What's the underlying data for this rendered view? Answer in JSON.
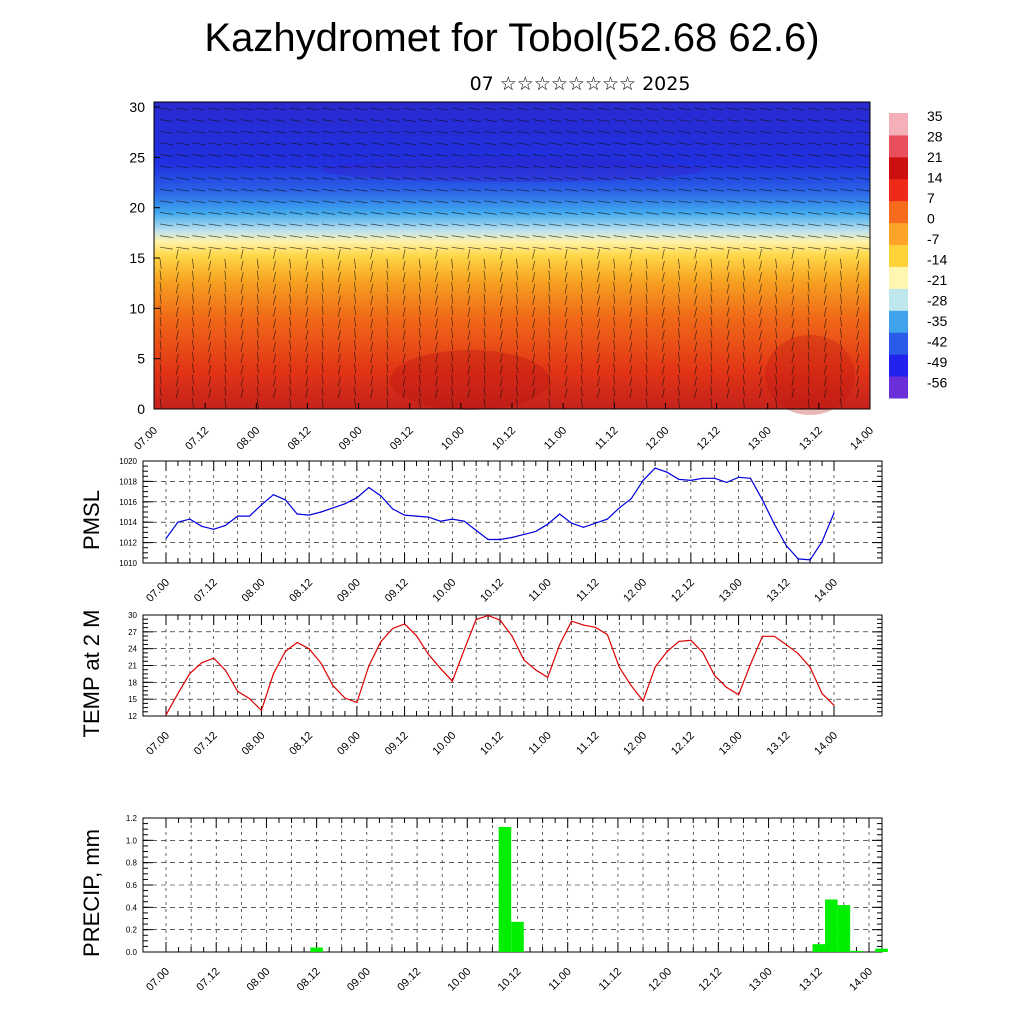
{
  "header": {
    "title": "Kazhydromet for Tobol(52.68 62.6)",
    "subtitle": "07 ☆☆☆☆☆☆☆☆ 2025"
  },
  "chart_data": [
    {
      "type": "heatmap",
      "title": "",
      "ylabel": "",
      "x_ticks": [
        "07.00",
        "07.12",
        "08.00",
        "08.12",
        "09.00",
        "09.12",
        "10.00",
        "10.12",
        "11.00",
        "11.12",
        "12.00",
        "12.12",
        "13.00",
        "13.12",
        "14.00"
      ],
      "y_ticks": [
        "0",
        "5",
        "10",
        "15",
        "20",
        "25",
        "30"
      ],
      "ylim": [
        0,
        30.5
      ],
      "colorbar": {
        "labels": [
          "35",
          "28",
          "21",
          "14",
          "7",
          "0",
          "-7",
          "-14",
          "-21",
          "-28",
          "-35",
          "-42",
          "-49",
          "-56"
        ],
        "colors": [
          "#6a2fd8",
          "#2222ee",
          "#2a5be8",
          "#3fa3ee",
          "#bfe8ee",
          "#fff7b0",
          "#ffd23a",
          "#ffa228",
          "#f56a1c",
          "#ee2a18",
          "#cc1010",
          "#e84e5c",
          "#f4b0b8"
        ]
      },
      "overlay": "wind barbs"
    },
    {
      "type": "line",
      "ylabel": "PMSL",
      "color": "#0000dd",
      "ylim": [
        1010,
        1020
      ],
      "y_ticks": [
        "1010",
        "1012",
        "1014",
        "1016",
        "1018",
        "1020"
      ],
      "x_ticks": [
        "07.00",
        "07.12",
        "08.00",
        "08.12",
        "09.00",
        "09.12",
        "10.00",
        "10.12",
        "11.00",
        "11.12",
        "12.00",
        "12.12",
        "13.00",
        "13.12",
        "14.00"
      ],
      "x_hours": [
        0,
        3,
        6,
        9,
        12,
        15,
        18,
        21,
        24,
        27,
        30,
        33,
        36,
        39,
        42,
        45,
        48,
        51,
        54,
        57,
        60,
        63,
        66,
        69,
        72,
        75,
        78,
        81,
        84,
        87,
        90,
        93,
        96,
        99,
        102,
        105,
        108,
        111,
        114,
        117,
        120,
        123,
        126,
        129,
        132,
        135,
        138,
        141,
        144,
        147,
        150,
        153,
        156,
        159,
        162,
        165,
        168
      ],
      "values": [
        1012.4,
        1014.0,
        1014.3,
        1013.6,
        1013.3,
        1013.7,
        1014.6,
        1014.6,
        1015.7,
        1016.7,
        1016.2,
        1014.8,
        1014.7,
        1015.0,
        1015.4,
        1015.8,
        1016.4,
        1017.4,
        1016.6,
        1015.3,
        1014.7,
        1014.6,
        1014.5,
        1014.1,
        1014.3,
        1014.1,
        1013.2,
        1012.3,
        1012.3,
        1012.5,
        1012.8,
        1013.1,
        1013.8,
        1014.8,
        1013.9,
        1013.5,
        1013.9,
        1014.3,
        1015.4,
        1016.3,
        1018.1,
        1019.3,
        1018.9,
        1018.2,
        1018.1,
        1018.3,
        1018.3,
        1017.9,
        1018.4,
        1018.3,
        1016.2,
        1013.8,
        1011.7,
        1010.4,
        1010.3,
        1012.1,
        1014.9
      ]
    },
    {
      "type": "line",
      "ylabel": "TEMP at 2 M",
      "color": "#dd0000",
      "ylim": [
        12,
        30
      ],
      "y_ticks": [
        "12",
        "15",
        "18",
        "21",
        "24",
        "27",
        "30"
      ],
      "x_ticks": [
        "07.00",
        "07.12",
        "08.00",
        "08.12",
        "09.00",
        "09.12",
        "10.00",
        "10.12",
        "11.00",
        "11.12",
        "12.00",
        "12.12",
        "13.00",
        "13.12",
        "14.00"
      ],
      "x_hours": [
        0,
        3,
        6,
        9,
        12,
        15,
        18,
        21,
        24,
        27,
        30,
        33,
        36,
        39,
        42,
        45,
        48,
        51,
        54,
        57,
        60,
        63,
        66,
        69,
        72,
        75,
        78,
        81,
        84,
        87,
        90,
        93,
        96,
        99,
        102,
        105,
        108,
        111,
        114,
        117,
        120,
        123,
        126,
        129,
        132,
        135,
        138,
        141,
        144,
        147,
        150,
        153,
        156,
        159,
        162,
        165,
        168
      ],
      "values": [
        12.2,
        16.0,
        19.6,
        21.5,
        22.3,
        20.1,
        16.4,
        15.1,
        13.0,
        19.5,
        23.5,
        25.1,
        24.0,
        21.4,
        17.4,
        15.2,
        14.4,
        20.9,
        25.2,
        27.6,
        28.4,
        26.3,
        23.0,
        20.5,
        18.2,
        23.8,
        29.2,
        29.9,
        29.1,
        26.3,
        22.0,
        20.2,
        18.9,
        24.7,
        28.9,
        28.2,
        27.8,
        26.5,
        20.7,
        17.4,
        14.7,
        20.7,
        23.5,
        25.3,
        25.5,
        23.3,
        19.2,
        17.1,
        15.8,
        21.2,
        26.2,
        26.2,
        24.7,
        23.1,
        20.7,
        16.0,
        13.9
      ]
    },
    {
      "type": "bar",
      "ylabel": "PRECIP, mm",
      "color": "#00ee00",
      "ylim": [
        0,
        1.2
      ],
      "y_ticks": [
        "0.0",
        "0.2",
        "0.4",
        "0.6",
        "0.8",
        "1.0",
        "1.2"
      ],
      "x_ticks": [
        "07.00",
        "07.12",
        "08.00",
        "08.12",
        "09.00",
        "09.12",
        "10.00",
        "10.12",
        "11.00",
        "11.12",
        "12.00",
        "12.12",
        "13.00",
        "13.12",
        "14.00"
      ],
      "bars": [
        {
          "hour": 36,
          "value": 0.04
        },
        {
          "hour": 81,
          "value": 1.12
        },
        {
          "hour": 84,
          "value": 0.27
        },
        {
          "hour": 156,
          "value": 0.07
        },
        {
          "hour": 159,
          "value": 0.47
        },
        {
          "hour": 162,
          "value": 0.42
        },
        {
          "hour": 165,
          "value": 0.01
        },
        {
          "hour": 171,
          "value": 0.03
        }
      ]
    }
  ]
}
